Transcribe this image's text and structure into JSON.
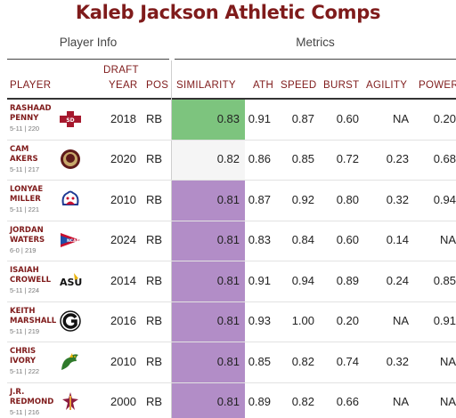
{
  "title": "Kaleb Jackson Athletic Comps",
  "groups": {
    "left": "Player Info",
    "right": "Metrics"
  },
  "headers": {
    "player": "PLAYER",
    "draft_year_line1": "DRAFT",
    "draft_year_line2": "YEAR",
    "pos": "POS",
    "similarity": "SIMILARITY",
    "ath": "ATH",
    "speed": "SPEED",
    "burst": "BURST",
    "agility": "AGILITY",
    "power": "POWER"
  },
  "colors": {
    "title": "#7f1b1b",
    "sim_high": "#7dc47e",
    "sim_mid": "#f5f5f5",
    "sim_low": "#b28dc7"
  },
  "chart_data": {
    "type": "table",
    "columns": [
      "PLAYER",
      "DRAFT YEAR",
      "POS",
      "SIMILARITY",
      "ATH",
      "SPEED",
      "BURST",
      "AGILITY",
      "POWER"
    ],
    "rows": [
      {
        "first": "Rashaad",
        "last": "Penny",
        "meta": "5-11 | 220",
        "logo": "san-diego-state-logo",
        "year": "2018",
        "pos": "RB",
        "similarity": "0.83",
        "ath": "0.91",
        "speed": "0.87",
        "burst": "0.60",
        "agility": "NA",
        "power": "0.20"
      },
      {
        "first": "Cam",
        "last": "Akers",
        "meta": "5-11 | 217",
        "logo": "florida-state-logo",
        "year": "2020",
        "pos": "RB",
        "similarity": "0.82",
        "ath": "0.86",
        "speed": "0.85",
        "burst": "0.72",
        "agility": "0.23",
        "power": "0.68"
      },
      {
        "first": "Lonyae",
        "last": "Miller",
        "meta": "5-11 | 221",
        "logo": "fresno-state-logo",
        "year": "2010",
        "pos": "RB",
        "similarity": "0.81",
        "ath": "0.87",
        "speed": "0.92",
        "burst": "0.80",
        "agility": "0.32",
        "power": "0.94"
      },
      {
        "first": "Jordan",
        "last": "Waters",
        "meta": "6-0 | 219",
        "logo": "ncaa-pennant-logo",
        "year": "2024",
        "pos": "RB",
        "similarity": "0.81",
        "ath": "0.83",
        "speed": "0.84",
        "burst": "0.60",
        "agility": "0.14",
        "power": "NA"
      },
      {
        "first": "Isaiah",
        "last": "Crowell",
        "meta": "5-11 | 224",
        "logo": "alabama-state-logo",
        "year": "2014",
        "pos": "RB",
        "similarity": "0.81",
        "ath": "0.91",
        "speed": "0.94",
        "burst": "0.89",
        "agility": "0.24",
        "power": "0.85"
      },
      {
        "first": "Keith",
        "last": "Marshall",
        "meta": "5-11 | 219",
        "logo": "georgia-logo",
        "year": "2016",
        "pos": "RB",
        "similarity": "0.81",
        "ath": "0.93",
        "speed": "1.00",
        "burst": "0.20",
        "agility": "NA",
        "power": "0.91"
      },
      {
        "first": "Chris",
        "last": "Ivory",
        "meta": "5-11 | 222",
        "logo": "tiffin-dragon-logo",
        "year": "2010",
        "pos": "RB",
        "similarity": "0.81",
        "ath": "0.85",
        "speed": "0.82",
        "burst": "0.74",
        "agility": "0.32",
        "power": "NA"
      },
      {
        "first": "J.R.",
        "last": "Redmond",
        "meta": "5-11 | 216",
        "logo": "arizona-state-logo",
        "year": "2000",
        "pos": "RB",
        "similarity": "0.81",
        "ath": "0.89",
        "speed": "0.82",
        "burst": "0.66",
        "agility": "NA",
        "power": "NA"
      }
    ]
  }
}
